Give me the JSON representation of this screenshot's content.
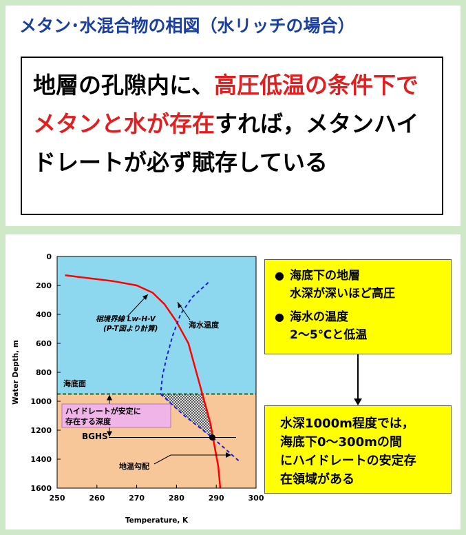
{
  "title": "メタン･水混合物の相図（水リッチの場合）",
  "statement": {
    "part1": "地層の孔隙内に、",
    "part2_red": "高圧低温の条件下でメタンと水が存在",
    "part3": "すれば，メタンハイドレートが必ず賦存している"
  },
  "diagram": {
    "xlabel": "Temperature,  K",
    "ylabel": "Water Depth,  m",
    "x_ticks": [
      "250",
      "260",
      "270",
      "280",
      "290",
      "300"
    ],
    "y_ticks": [
      "0",
      "200",
      "400",
      "600",
      "800",
      "1000",
      "1200",
      "1400",
      "1600"
    ],
    "labels": {
      "phase_boundary": "相境界線 Lw-H-V",
      "phase_boundary_sub": "(P-T図より計算)",
      "sea_temp": "海水温度",
      "seafloor": "海底面",
      "stable_zone": "ハイドレートが安定に",
      "stable_zone2": "存在する深度",
      "bghs": "BGHS",
      "geotherm": "地温勾配"
    }
  },
  "chart_data": {
    "type": "line",
    "xlabel": "Temperature,  K",
    "ylabel": "Water Depth,  m",
    "xlim": [
      250,
      300
    ],
    "ylim": [
      1600,
      0
    ],
    "seafloor_depth": 950,
    "bghs_depth": 1250,
    "series": [
      {
        "name": "相境界線 Lw-H-V",
        "color": "#ff0000",
        "points": [
          [
            252,
            130
          ],
          [
            258,
            150
          ],
          [
            264,
            170
          ],
          [
            270,
            200
          ],
          [
            274,
            250
          ],
          [
            277,
            330
          ],
          [
            280,
            450
          ],
          [
            283,
            600
          ],
          [
            285,
            800
          ],
          [
            287,
            1000
          ],
          [
            288.5,
            1150
          ],
          [
            289.5,
            1300
          ],
          [
            290.5,
            1450
          ],
          [
            291,
            1600
          ]
        ]
      },
      {
        "name": "海水温度",
        "color": "#1c1cd8",
        "points": [
          [
            288,
            180
          ],
          [
            284,
            280
          ],
          [
            281,
            400
          ],
          [
            279,
            550
          ],
          [
            277.5,
            700
          ],
          [
            276.5,
            820
          ],
          [
            276,
            950
          ]
        ]
      },
      {
        "name": "地温勾配",
        "color": "#1c1cd8",
        "points": [
          [
            276,
            950
          ],
          [
            282,
            1100
          ],
          [
            289,
            1250
          ],
          [
            296,
            1420
          ]
        ]
      }
    ]
  },
  "notes": {
    "bullet1": "海底下の地層\n水深が深いほど高圧",
    "bullet2": "海水の温度\n2～5℃と低温",
    "conclusion": "水深1000m程度では，\n海底下0～300mの間\nにハイドレートの安定存\n在領域がある"
  },
  "colors": {
    "sea": "#8ed8ef",
    "sediment": "#f7c79a",
    "stable_label_bg": "#f0b4e8",
    "note_bg": "#ffff00",
    "title": "#1a3fa0",
    "emphasis": "#e02020"
  }
}
